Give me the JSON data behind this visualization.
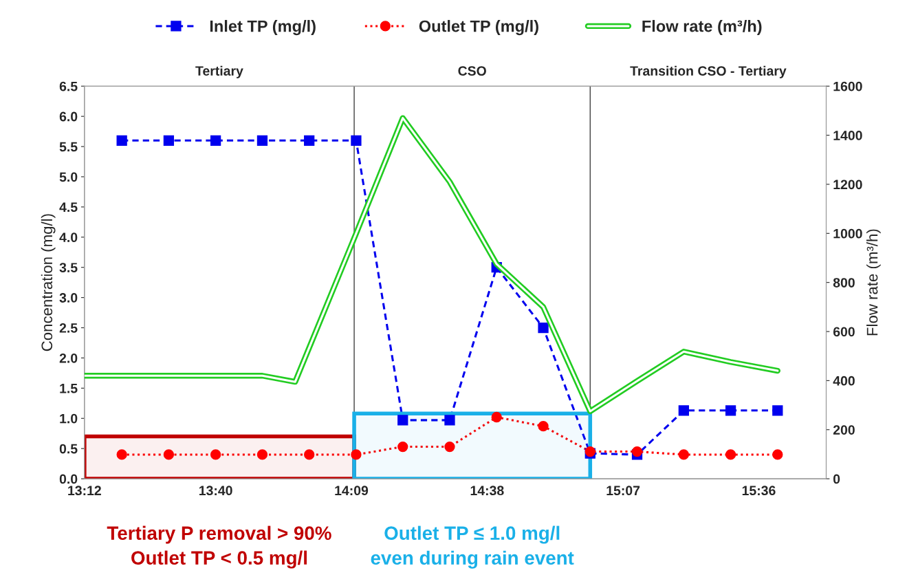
{
  "chart_data": {
    "type": "line",
    "xlabel": null,
    "ylabel": "Concentration (mg/l)",
    "y2label": "Flow rate (m³/h)",
    "xlim": [
      13.2,
      15.84
    ],
    "xticks": [
      {
        "value": 13.2,
        "label": "13:12"
      },
      {
        "value": 13.667,
        "label": "13:40"
      },
      {
        "value": 14.15,
        "label": "14:09"
      },
      {
        "value": 14.633,
        "label": "14:38"
      },
      {
        "value": 15.117,
        "label": "15:07"
      },
      {
        "value": 15.6,
        "label": "15:36"
      }
    ],
    "ylim": [
      0,
      6.5
    ],
    "yticks": [
      {
        "value": 0,
        "label": "0.0"
      },
      {
        "value": 0.5,
        "label": "0.5"
      },
      {
        "value": 1,
        "label": "1.0"
      },
      {
        "value": 1.5,
        "label": "1.5"
      },
      {
        "value": 2,
        "label": "2.0"
      },
      {
        "value": 2.5,
        "label": "2.5"
      },
      {
        "value": 3,
        "label": "3.0"
      },
      {
        "value": 3.5,
        "label": "3.5"
      },
      {
        "value": 4,
        "label": "4.0"
      },
      {
        "value": 4.5,
        "label": "4.5"
      },
      {
        "value": 5,
        "label": "5.0"
      },
      {
        "value": 5.5,
        "label": "5.5"
      },
      {
        "value": 6,
        "label": "6.0"
      },
      {
        "value": 6.5,
        "label": "6.5"
      }
    ],
    "y2lim": [
      0,
      1600
    ],
    "y2ticks": [
      0,
      200,
      400,
      600,
      800,
      1000,
      1200,
      1400,
      1600
    ],
    "grid": false,
    "legend": "top",
    "series": [
      {
        "name": "Inlet TP (mg/l)",
        "color": "#0000ee",
        "marker": "square",
        "line_style": "dashed",
        "x": [
          13.333,
          13.5,
          13.667,
          13.833,
          14.0,
          14.167,
          14.333,
          14.5,
          14.667,
          14.833,
          15.0,
          15.167,
          15.333,
          15.5,
          15.667
        ],
        "values": [
          5.6,
          5.6,
          5.6,
          5.6,
          5.6,
          5.6,
          0.97,
          0.97,
          3.5,
          2.5,
          0.42,
          0.4,
          1.13,
          1.13,
          1.13
        ]
      },
      {
        "name": "Outlet TP (mg/l)",
        "color": "#ff0000",
        "marker": "circle",
        "line_style": "dotted",
        "x": [
          13.333,
          13.5,
          13.667,
          13.833,
          14.0,
          14.167,
          14.333,
          14.5,
          14.667,
          14.833,
          15.0,
          15.167,
          15.333,
          15.5,
          15.667
        ],
        "values": [
          0.4,
          0.4,
          0.4,
          0.4,
          0.4,
          0.4,
          0.53,
          0.53,
          1.02,
          0.87,
          0.45,
          0.45,
          0.4,
          0.4,
          0.4
        ]
      },
      {
        "name": "Flow rate (m³/h)",
        "color": "#22cc22",
        "marker": "none",
        "line_style": "solid",
        "axis": "y2",
        "x": [
          13.2,
          13.333,
          13.5,
          13.667,
          13.833,
          13.95,
          14.167,
          14.333,
          14.5,
          14.667,
          14.833,
          15.0,
          15.167,
          15.333,
          15.5,
          15.667
        ],
        "values": [
          420,
          420,
          420,
          420,
          420,
          395,
          1000,
          1470,
          1210,
          875,
          700,
          275,
          398,
          518,
          476,
          440
        ]
      }
    ],
    "ref_lines": [
      {
        "axis": "x",
        "value": 14.16,
        "color": "#404040"
      },
      {
        "axis": "x",
        "value": 15.0,
        "color": "#404040"
      }
    ],
    "bands": [
      {
        "axis": "x",
        "from": 13.2,
        "to": 14.16,
        "color": "#c00000"
      },
      {
        "axis": "x",
        "from": 14.16,
        "to": 15.0,
        "color": "#1ab0e8"
      }
    ],
    "annotations": [
      "Tertiary",
      "CSO",
      "Transition CSO - Tertiary",
      "Tertiary P removal > 90%\nOutlet TP < 0.5 mg/l",
      "Outlet TP ≤ 1.0 mg/l\neven during rain event"
    ]
  }
}
